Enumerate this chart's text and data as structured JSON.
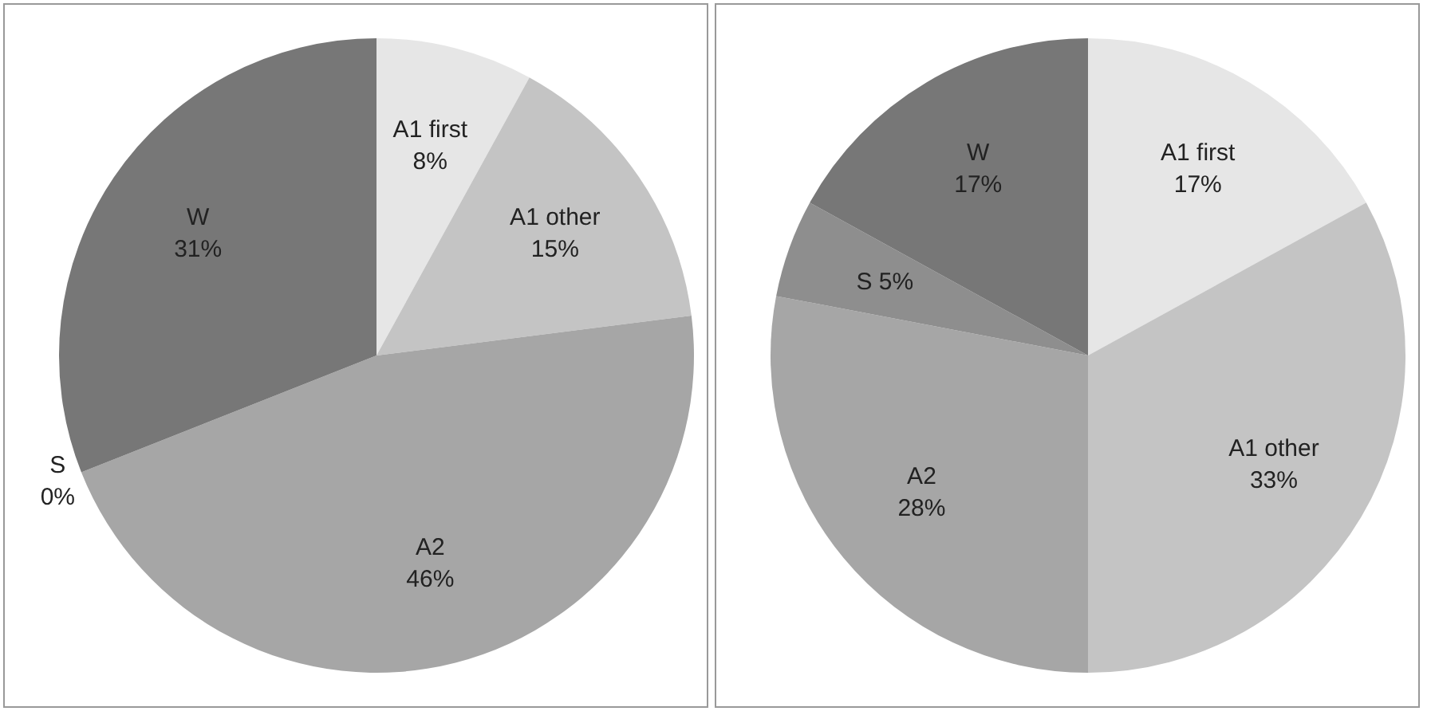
{
  "chart_data": [
    {
      "type": "pie",
      "categories": [
        "A1 first",
        "A1 other",
        "A2",
        "S",
        "W"
      ],
      "values": [
        8,
        15,
        46,
        0,
        31
      ],
      "value_labels": [
        "8%",
        "15%",
        "46%",
        "0%",
        "31%"
      ],
      "colors": [
        "#e6e6e6",
        "#c4c4c4",
        "#a6a6a6",
        "#8e8e8e",
        "#777777"
      ]
    },
    {
      "type": "pie",
      "categories": [
        "A1 first",
        "A1 other",
        "A2",
        "S",
        "W"
      ],
      "values": [
        17,
        33,
        28,
        5,
        17
      ],
      "value_labels": [
        "17%",
        "33%",
        "28%",
        "5%",
        "17%"
      ],
      "colors": [
        "#e6e6e6",
        "#c4c4c4",
        "#a6a6a6",
        "#8e8e8e",
        "#777777"
      ]
    }
  ]
}
